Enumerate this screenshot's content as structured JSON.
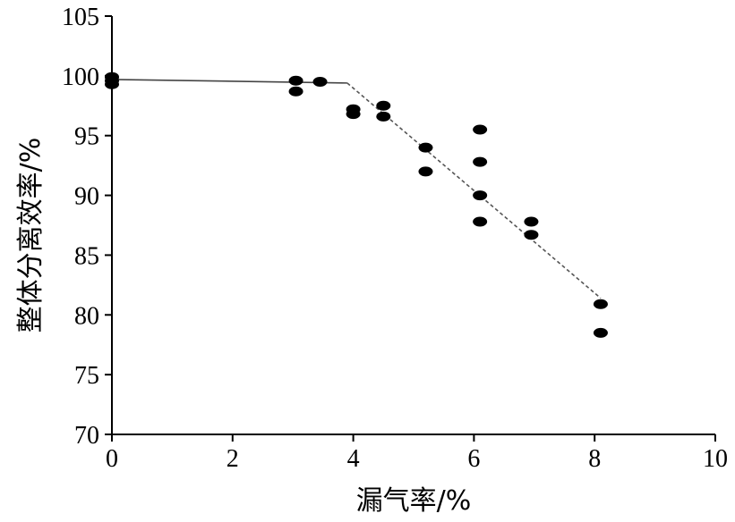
{
  "chart_data": {
    "type": "scatter",
    "title": "",
    "xlabel": "漏气率/%",
    "ylabel": "整体分离效率/%",
    "xlim": [
      0,
      10
    ],
    "ylim": [
      70,
      105
    ],
    "xticks": [
      "0",
      "2",
      "4",
      "6",
      "8",
      "10"
    ],
    "yticks": [
      "70",
      "75",
      "80",
      "85",
      "90",
      "95",
      "100",
      "105"
    ],
    "grid": false,
    "legend": "none",
    "series": [
      {
        "points": [
          {
            "x": 0.0,
            "y": 99.9
          },
          {
            "x": 0.0,
            "y": 99.6
          },
          {
            "x": 0.0,
            "y": 99.3
          },
          {
            "x": 3.05,
            "y": 99.6
          },
          {
            "x": 3.05,
            "y": 98.7
          },
          {
            "x": 3.45,
            "y": 99.5
          },
          {
            "x": 4.0,
            "y": 97.2
          },
          {
            "x": 4.0,
            "y": 96.8
          },
          {
            "x": 4.5,
            "y": 97.5
          },
          {
            "x": 4.5,
            "y": 96.6
          },
          {
            "x": 5.2,
            "y": 94.0
          },
          {
            "x": 5.2,
            "y": 92.0
          },
          {
            "x": 6.1,
            "y": 95.5
          },
          {
            "x": 6.1,
            "y": 92.8
          },
          {
            "x": 6.1,
            "y": 90.0
          },
          {
            "x": 6.1,
            "y": 87.8
          },
          {
            "x": 6.95,
            "y": 87.8
          },
          {
            "x": 6.95,
            "y": 86.7
          },
          {
            "x": 8.1,
            "y": 80.9
          },
          {
            "x": 8.1,
            "y": 78.5
          }
        ]
      }
    ],
    "fit_lines": [
      {
        "style": "solid",
        "x": [
          0.0,
          3.9
        ],
        "y": [
          99.7,
          99.4
        ]
      },
      {
        "style": "dashed",
        "x": [
          3.9,
          8.1
        ],
        "y": [
          99.4,
          81.4
        ]
      }
    ]
  }
}
